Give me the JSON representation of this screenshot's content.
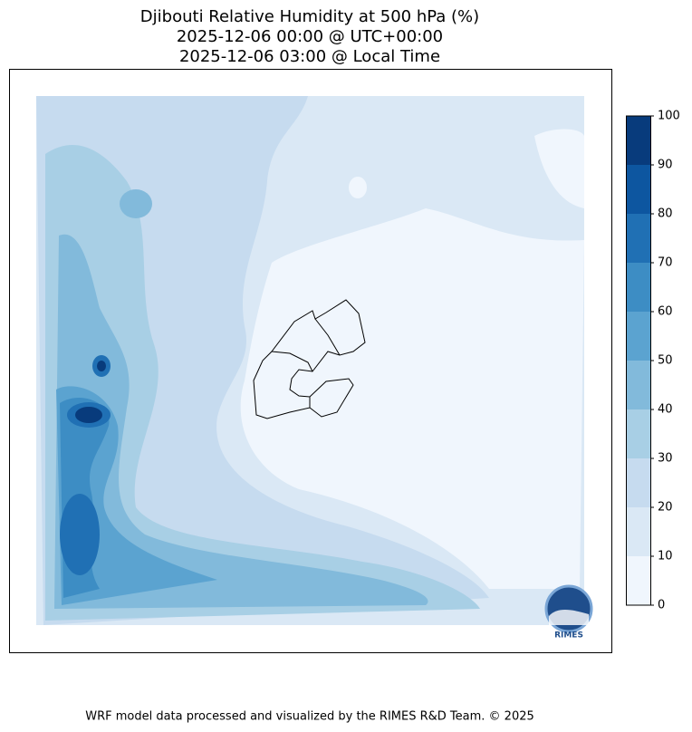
{
  "title": [
    "Djibouti Relative Humidity at 500 hPa (%)",
    "2025-12-06 00:00 @ UTC+00:00",
    "2025-12-06 03:00 @ Local Time"
  ],
  "colorbar": {
    "ticks": [
      0,
      10,
      20,
      30,
      40,
      50,
      60,
      70,
      80,
      90,
      100
    ],
    "colors": [
      "#f0f6fd",
      "#dae8f5",
      "#c6dbef",
      "#a8cfe5",
      "#82badb",
      "#5ba3d0",
      "#3d8dc4",
      "#2070b4",
      "#0d56a0",
      "#083b7c"
    ]
  },
  "logo": "RIMES",
  "footer": "WRF model data processed and visualized by the RIMES R&D Team. © 2025"
}
